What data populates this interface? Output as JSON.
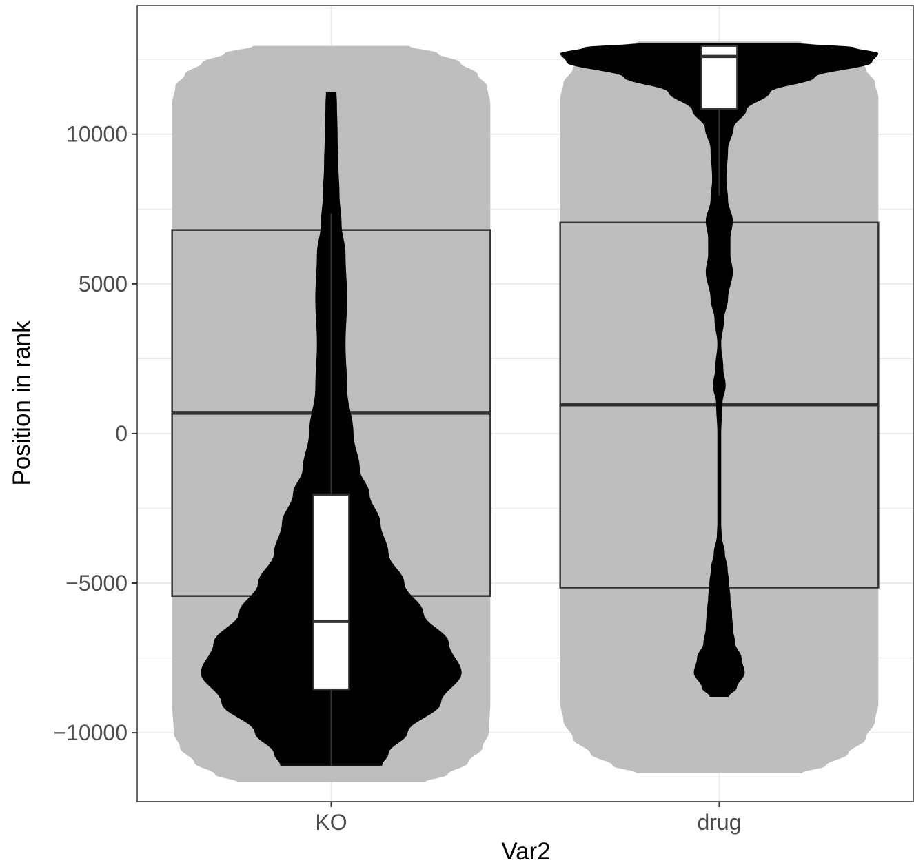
{
  "chart_data": {
    "type": "violin",
    "xlabel": "Var2",
    "ylabel": "Position in rank",
    "categories": [
      "KO",
      "drug"
    ],
    "ylim": [
      -12300,
      14300
    ],
    "y_ticks": [
      -10000,
      -5000,
      0,
      5000,
      10000
    ],
    "y_tick_labels": [
      "−10000",
      "−5000",
      "0",
      "5000",
      "10000"
    ],
    "grid": true,
    "theme": "bw",
    "background_layer": {
      "fill": "#bebebe",
      "groups": [
        {
          "name": "KO",
          "violin_range": [
            -11650,
            12950
          ],
          "box": {
            "q1": -5430,
            "median": 680,
            "q3": 6800
          },
          "profile": [
            [
              -11650,
              0.59
            ],
            [
              -11400,
              0.73
            ],
            [
              -11000,
              0.86
            ],
            [
              -10500,
              0.95
            ],
            [
              -10000,
              0.99
            ],
            [
              -9000,
              1.0
            ],
            [
              11000,
              1.0
            ],
            [
              11600,
              0.98
            ],
            [
              12000,
              0.92
            ],
            [
              12400,
              0.81
            ],
            [
              12700,
              0.67
            ],
            [
              12950,
              0.49
            ]
          ]
        },
        {
          "name": "drug",
          "violin_range": [
            -11350,
            13100
          ],
          "box": {
            "q1": -5150,
            "median": 960,
            "q3": 7050
          },
          "profile": [
            [
              -11350,
              0.52
            ],
            [
              -11100,
              0.67
            ],
            [
              -10700,
              0.81
            ],
            [
              -10200,
              0.92
            ],
            [
              -9600,
              0.98
            ],
            [
              -9000,
              1.0
            ],
            [
              11200,
              1.0
            ],
            [
              11700,
              0.98
            ],
            [
              12200,
              0.92
            ],
            [
              12600,
              0.81
            ],
            [
              12900,
              0.67
            ],
            [
              13100,
              0.51
            ]
          ]
        }
      ]
    },
    "foreground_layer": {
      "violin_fill": "#000000",
      "box_fill": "#ffffff",
      "groups": [
        {
          "name": "KO",
          "violin_range": [
            -11100,
            11400
          ],
          "box": {
            "lower_whisker": -11100,
            "q1": -8550,
            "median": -6280,
            "q3": -2050,
            "upper_whisker": 7350
          },
          "profile": [
            [
              -11100,
              0.32
            ],
            [
              -10700,
              0.36
            ],
            [
              -10000,
              0.48
            ],
            [
              -9000,
              0.69
            ],
            [
              -8000,
              0.82
            ],
            [
              -7000,
              0.74
            ],
            [
              -6000,
              0.58
            ],
            [
              -5000,
              0.46
            ],
            [
              -4000,
              0.36
            ],
            [
              -3000,
              0.31
            ],
            [
              -2000,
              0.24
            ],
            [
              -1200,
              0.18
            ],
            [
              0,
              0.14
            ],
            [
              1500,
              0.1
            ],
            [
              3000,
              0.09
            ],
            [
              4500,
              0.1
            ],
            [
              6000,
              0.09
            ],
            [
              7000,
              0.065
            ],
            [
              8000,
              0.052
            ],
            [
              9000,
              0.045
            ],
            [
              10000,
              0.04
            ],
            [
              11000,
              0.036
            ],
            [
              11400,
              0.033
            ]
          ]
        },
        {
          "name": "drug",
          "violin_range": [
            -8800,
            13050
          ],
          "box": {
            "lower_whisker": 7950,
            "q1": 10850,
            "median": 12600,
            "q3": 12950,
            "upper_whisker": 12950
          },
          "profile": [
            [
              -8800,
              0.06
            ],
            [
              -8500,
              0.11
            ],
            [
              -8000,
              0.16
            ],
            [
              -7500,
              0.14
            ],
            [
              -7000,
              0.1
            ],
            [
              -6500,
              0.085
            ],
            [
              -6000,
              0.08
            ],
            [
              -5500,
              0.07
            ],
            [
              -5000,
              0.062
            ],
            [
              -4500,
              0.052
            ],
            [
              -4000,
              0.035
            ],
            [
              -3400,
              0.015
            ],
            [
              -3000,
              0.012
            ],
            [
              0,
              0.012
            ],
            [
              1000,
              0.02
            ],
            [
              1600,
              0.04
            ],
            [
              2200,
              0.025
            ],
            [
              3000,
              0.012
            ],
            [
              3800,
              0.03
            ],
            [
              4500,
              0.055
            ],
            [
              5400,
              0.085
            ],
            [
              6000,
              0.07
            ],
            [
              6500,
              0.07
            ],
            [
              7100,
              0.085
            ],
            [
              7800,
              0.055
            ],
            [
              8500,
              0.045
            ],
            [
              9500,
              0.055
            ],
            [
              10200,
              0.09
            ],
            [
              10800,
              0.17
            ],
            [
              11400,
              0.32
            ],
            [
              11900,
              0.6
            ],
            [
              12400,
              0.96
            ],
            [
              12700,
              1.0
            ],
            [
              12900,
              0.85
            ],
            [
              13050,
              0.5
            ]
          ]
        }
      ]
    }
  }
}
